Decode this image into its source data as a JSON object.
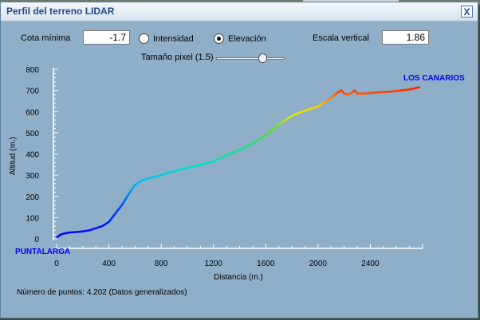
{
  "window": {
    "title": "Perfil del terreno LIDAR",
    "close_label": "X"
  },
  "controls": {
    "cota_minima_label": "Cota mínima",
    "cota_minima_value": "-1.7",
    "intensidad_label": "Intensidad",
    "elevacion_label": "Elevación",
    "selected_mode": "Elevación",
    "escala_vertical_label": "Escala vertical",
    "escala_vertical_value": "1.86",
    "tamano_pixel_label": "Tamaño pixel (1.5)",
    "tamano_pixel_value": 1.5
  },
  "chart_data": {
    "type": "line",
    "xlabel": "Distancia (m.)",
    "ylabel": "Altitud (m.)",
    "xlim": [
      0,
      2800
    ],
    "ylim": [
      0,
      800
    ],
    "x_ticks": [
      "0",
      "400",
      "800",
      "1200",
      "1600",
      "2000",
      "2400"
    ],
    "y_ticks": [
      "0",
      "100",
      "200",
      "300",
      "400",
      "500",
      "600",
      "700",
      "800"
    ],
    "start_label": "PUNTALARGA",
    "end_label": "LOS CANARIOS",
    "color_scale": "elevation (blue low → red high)",
    "label_color": "#0000ee",
    "x": [
      0,
      30,
      60,
      100,
      150,
      200,
      250,
      300,
      350,
      400,
      450,
      500,
      550,
      600,
      650,
      700,
      800,
      900,
      1000,
      1100,
      1200,
      1300,
      1400,
      1500,
      1600,
      1700,
      1800,
      1900,
      2000,
      2050,
      2100,
      2150,
      2180,
      2200,
      2230,
      2260,
      2280,
      2300,
      2350,
      2400,
      2500,
      2600,
      2700,
      2780
    ],
    "y": [
      5,
      20,
      25,
      30,
      32,
      35,
      40,
      50,
      60,
      80,
      120,
      160,
      210,
      255,
      275,
      285,
      300,
      320,
      335,
      350,
      365,
      395,
      420,
      450,
      490,
      540,
      580,
      605,
      625,
      645,
      665,
      690,
      700,
      685,
      680,
      690,
      700,
      685,
      685,
      688,
      692,
      697,
      705,
      715
    ]
  },
  "footer": {
    "points_text": "Número de puntos: 4.202 (Datos generalizados)"
  }
}
